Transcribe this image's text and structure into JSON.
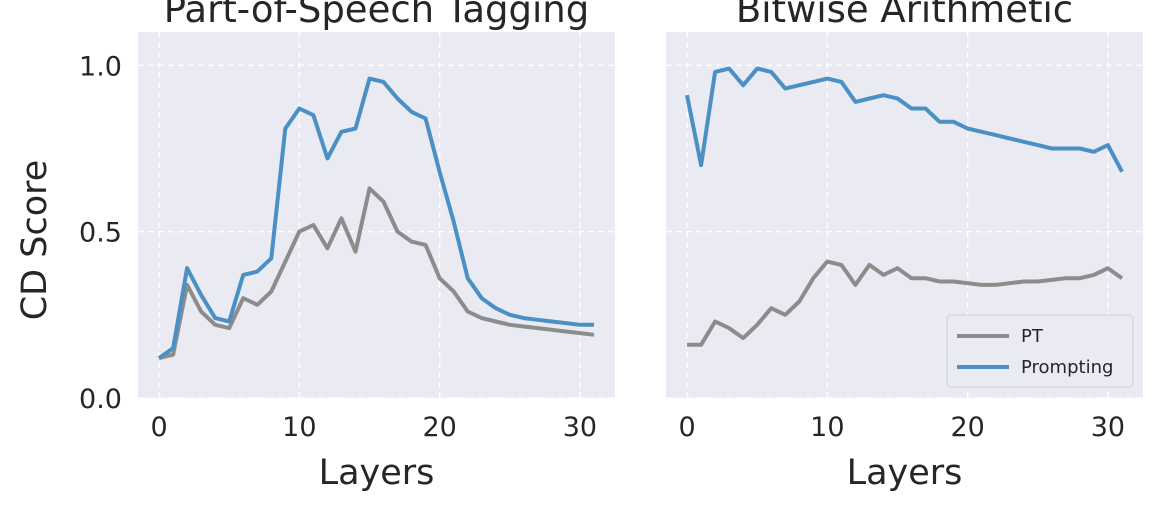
{
  "figure": {
    "ylabel": "CD Score"
  },
  "chart_data": [
    {
      "type": "line",
      "title": "Part-of-Speech Tagging",
      "xlabel": "Layers",
      "ylabel": "CD Score",
      "xlim": [
        -1.5,
        32.5
      ],
      "ylim": [
        0,
        1.1
      ],
      "xticks": [
        "0",
        "10",
        "20",
        "30"
      ],
      "yticks": [
        "0.0",
        "0.5",
        "1.0"
      ],
      "grid": true,
      "x": [
        0,
        1,
        2,
        3,
        4,
        5,
        6,
        7,
        8,
        9,
        10,
        11,
        12,
        13,
        14,
        15,
        16,
        17,
        18,
        19,
        20,
        21,
        22,
        23,
        24,
        25,
        26,
        27,
        28,
        29,
        30,
        31
      ],
      "series": [
        {
          "name": "PT",
          "color": "#8c8c8c",
          "values": [
            0.12,
            0.13,
            0.34,
            0.26,
            0.22,
            0.21,
            0.3,
            0.28,
            0.32,
            0.41,
            0.5,
            0.52,
            0.45,
            0.54,
            0.44,
            0.63,
            0.59,
            0.5,
            0.47,
            0.46,
            0.36,
            0.32,
            0.26,
            0.24,
            0.23,
            0.22,
            0.215,
            0.21,
            0.205,
            0.2,
            0.195,
            0.19
          ]
        },
        {
          "name": "Prompting",
          "color": "#4a90c4",
          "values": [
            0.12,
            0.15,
            0.39,
            0.31,
            0.24,
            0.23,
            0.37,
            0.38,
            0.42,
            0.81,
            0.87,
            0.85,
            0.72,
            0.8,
            0.81,
            0.96,
            0.95,
            0.9,
            0.86,
            0.84,
            0.68,
            0.53,
            0.36,
            0.3,
            0.27,
            0.25,
            0.24,
            0.235,
            0.23,
            0.225,
            0.22,
            0.22
          ]
        }
      ]
    },
    {
      "type": "line",
      "title": "Bitwise Arithmetic",
      "xlabel": "Layers",
      "ylabel": "",
      "xlim": [
        -1.5,
        32.5
      ],
      "ylim": [
        0,
        1.1
      ],
      "xticks": [
        "0",
        "10",
        "20",
        "30"
      ],
      "grid": true,
      "legend_position": "bottom-right",
      "x": [
        0,
        1,
        2,
        3,
        4,
        5,
        6,
        7,
        8,
        9,
        10,
        11,
        12,
        13,
        14,
        15,
        16,
        17,
        18,
        19,
        20,
        21,
        22,
        23,
        24,
        25,
        26,
        27,
        28,
        29,
        30,
        31
      ],
      "series": [
        {
          "name": "PT",
          "color": "#8c8c8c",
          "values": [
            0.16,
            0.16,
            0.23,
            0.21,
            0.18,
            0.22,
            0.27,
            0.25,
            0.29,
            0.36,
            0.41,
            0.4,
            0.34,
            0.4,
            0.37,
            0.39,
            0.36,
            0.36,
            0.35,
            0.35,
            0.345,
            0.34,
            0.34,
            0.345,
            0.35,
            0.35,
            0.355,
            0.36,
            0.36,
            0.37,
            0.39,
            0.36
          ]
        },
        {
          "name": "Prompting",
          "color": "#4a90c4",
          "values": [
            0.91,
            0.7,
            0.98,
            0.99,
            0.94,
            0.99,
            0.98,
            0.93,
            0.94,
            0.95,
            0.96,
            0.95,
            0.89,
            0.9,
            0.91,
            0.9,
            0.87,
            0.87,
            0.83,
            0.83,
            0.81,
            0.8,
            0.79,
            0.78,
            0.77,
            0.76,
            0.75,
            0.75,
            0.75,
            0.74,
            0.76,
            0.68
          ]
        }
      ]
    }
  ]
}
